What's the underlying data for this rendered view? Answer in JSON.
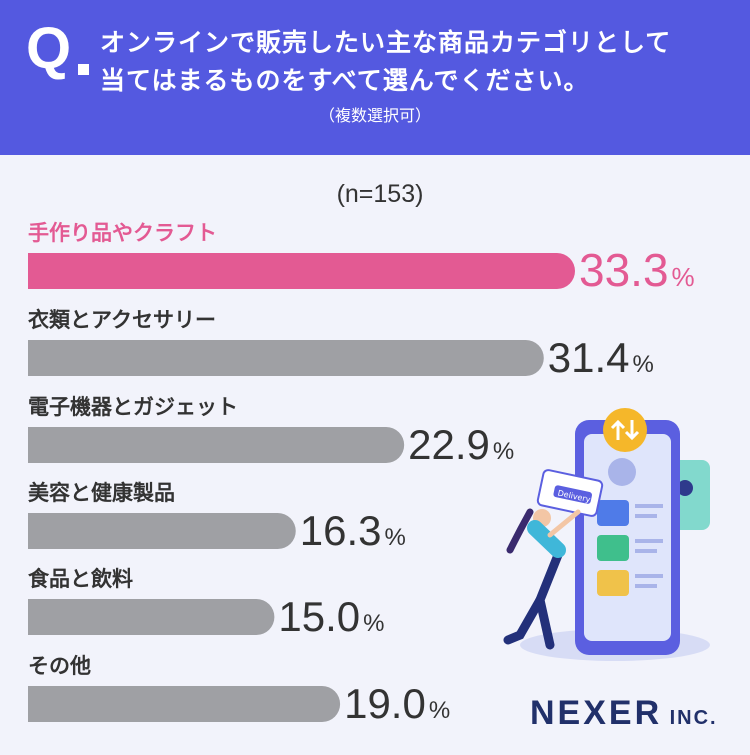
{
  "question": {
    "mark": "Q",
    "line1": "オンラインで販売したい主な商品カテゴリとして",
    "line2": "当てはまるものをすべて選んでください。",
    "note": "（複数選択可）"
  },
  "sample_label": "(n=153)",
  "logo": {
    "main": "NEXER",
    "suffix": "INC."
  },
  "colors": {
    "header": "#5459e0",
    "highlight": "#e35a93",
    "bar": "#9fa0a4",
    "value_text": "#333333",
    "label_text": "#333333"
  },
  "illustration": {
    "icon": "online-delivery-app-illustration",
    "badge_text": "Delivery"
  },
  "chart_data": {
    "type": "bar",
    "orientation": "horizontal",
    "title": "",
    "unit": "%",
    "categories": [
      "手作り品やクラフト",
      "衣類とアクセサリー",
      "電子機器とガジェット",
      "美容と健康製品",
      "食品と飲料",
      "その他"
    ],
    "values": [
      33.3,
      31.4,
      22.9,
      16.3,
      15.0,
      19.0
    ],
    "value_labels": [
      "33.3",
      "31.4",
      "22.9",
      "16.3",
      "15.0",
      "19.0"
    ],
    "highlight_index": 0,
    "xlim": [
      0,
      33.3
    ],
    "grid": false
  }
}
